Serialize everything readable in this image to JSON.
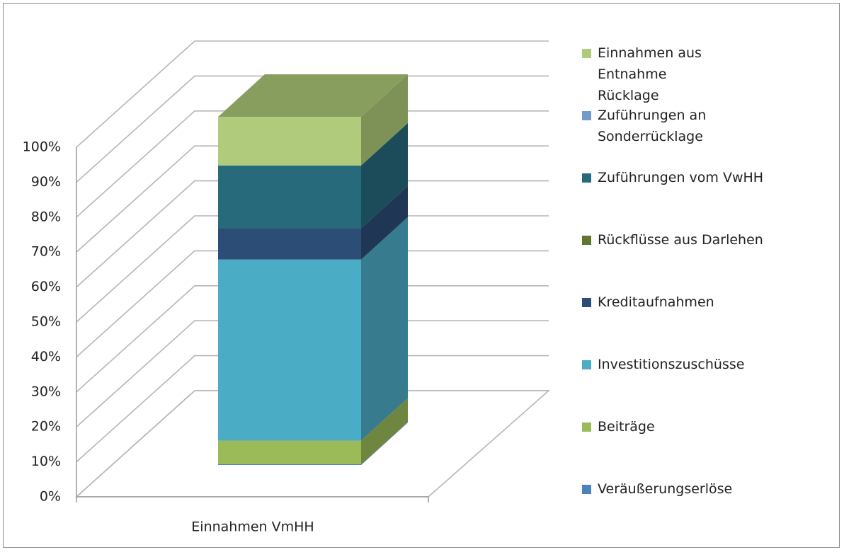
{
  "chart_data": {
    "type": "bar3d_stacked",
    "categories": [
      "Einnahmen VmHH"
    ],
    "series": [
      {
        "name": "Veräußerungserlöse",
        "color": "#4f81bd",
        "values": [
          0.2
        ]
      },
      {
        "name": "Beiträge",
        "color": "#9bbb59",
        "values": [
          6.8
        ]
      },
      {
        "name": "Investitionszuschüsse",
        "color": "#4bacc6",
        "values": [
          52
        ]
      },
      {
        "name": "Kreditaufnahmen",
        "color": "#2c4d75",
        "values": [
          9
        ]
      },
      {
        "name": "Rückflüsse aus Darlehen",
        "color": "#5f7530",
        "values": [
          0
        ]
      },
      {
        "name": "Zuführungen vom VwHH",
        "color": "#276a7c",
        "values": [
          18
        ]
      },
      {
        "name": "Zuführungen an Sonderrücklage",
        "color": "#729aca",
        "values": [
          0
        ]
      },
      {
        "name": "Einnahmen aus Entnahme Rücklage",
        "color": "#afcb7b",
        "values": [
          14
        ]
      }
    ],
    "ylim": [
      0,
      100
    ],
    "yticks": [
      {
        "value": 0,
        "label": "0%"
      },
      {
        "value": 10,
        "label": "10%"
      },
      {
        "value": 20,
        "label": "20%"
      },
      {
        "value": 30,
        "label": "30%"
      },
      {
        "value": 40,
        "label": "40%"
      },
      {
        "value": 50,
        "label": "50%"
      },
      {
        "value": 60,
        "label": "60%"
      },
      {
        "value": 70,
        "label": "70%"
      },
      {
        "value": 80,
        "label": "80%"
      },
      {
        "value": 90,
        "label": "90%"
      },
      {
        "value": 100,
        "label": "100%"
      }
    ],
    "grid": true,
    "legend": "right"
  }
}
